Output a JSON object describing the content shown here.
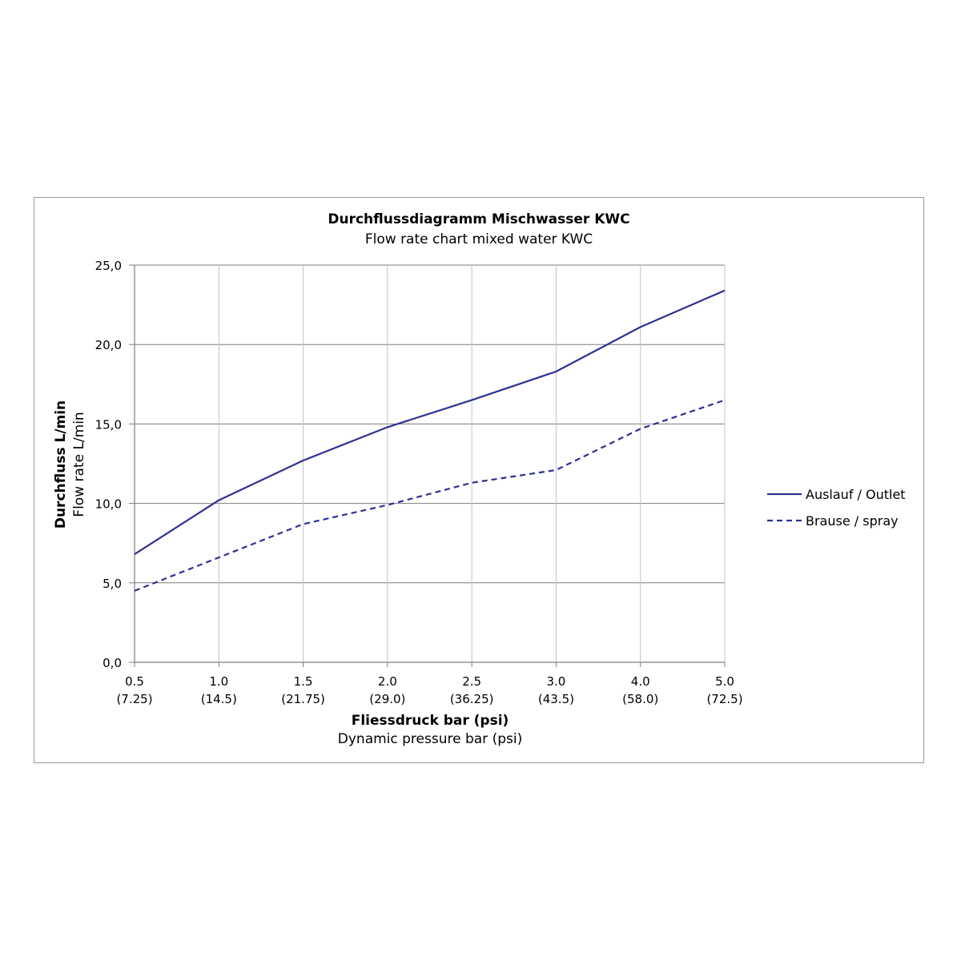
{
  "chart_data": {
    "type": "line",
    "title": "Durchflussdiagramm Mischwasser KWC",
    "subtitle": "Flow rate chart  mixed water KWC",
    "xlabel": "Fliessdruck bar (psi)",
    "xlabel_sub": "Dynamic pressure bar (psi)",
    "ylabel": "Durchfluss L/min",
    "ylabel_sub": "Flow rate L/min",
    "categories": [
      "0.5",
      "1.0",
      "1.5",
      "2.0",
      "2.5",
      "3.0",
      "4.0",
      "5.0"
    ],
    "categories_sub": [
      "(7.25)",
      "(14.5)",
      "(21.75)",
      "(29.0)",
      "(36.25)",
      "(43.5)",
      "(58.0)",
      "(72.5)"
    ],
    "y_ticks": [
      "0,0",
      "5,0",
      "10,0",
      "15,0",
      "20,0",
      "25,0"
    ],
    "ylim": [
      0,
      25
    ],
    "grid": true,
    "legend_position": "right",
    "series": [
      {
        "name": "Auslauf / Outlet",
        "style": "solid",
        "color": "#2e3192",
        "values": [
          6.8,
          10.2,
          12.7,
          14.8,
          16.5,
          18.3,
          21.1,
          23.4
        ]
      },
      {
        "name": "Brause / spray",
        "style": "dashed",
        "color": "#2e3192",
        "values": [
          4.5,
          6.6,
          8.7,
          9.9,
          11.3,
          12.1,
          14.7,
          16.5
        ]
      }
    ]
  }
}
